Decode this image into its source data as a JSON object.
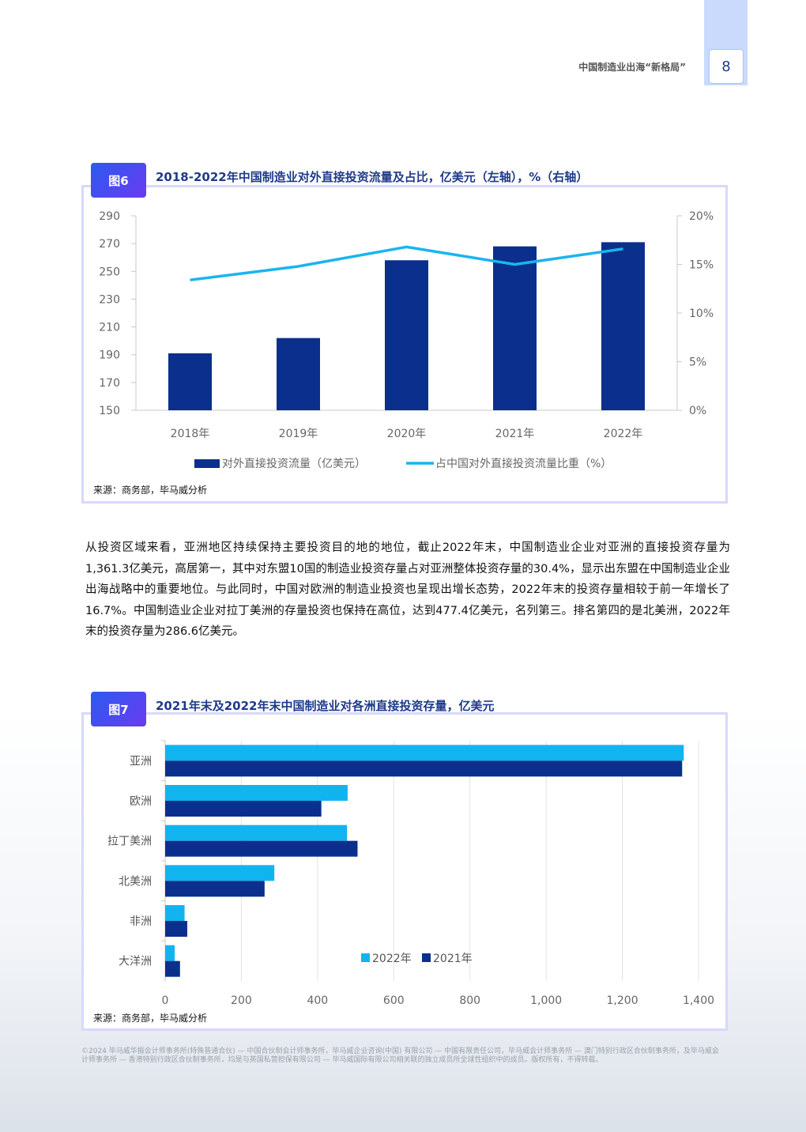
{
  "header": {
    "running_head": "中国制造业出海“新格局”",
    "page_number": "8"
  },
  "figure6": {
    "badge": "图6",
    "title": "2018-2022年中国制造业对外直接投资流量及占比，亿美元（左轴），%（右轴）",
    "source": "来源：商务部，毕马威分析",
    "chart_data": {
      "type": "bar",
      "categories": [
        "2018年",
        "2019年",
        "2020年",
        "2021年",
        "2022年"
      ],
      "series": [
        {
          "name": "对外直接投资流量（亿美元）",
          "type": "bar",
          "axis": "left",
          "values": [
            191,
            202,
            258,
            268,
            271
          ],
          "color": "#0a2f8c"
        },
        {
          "name": "占中国对外直接投资流量比重（%）",
          "type": "line",
          "axis": "right",
          "values": [
            13.4,
            14.8,
            16.8,
            15.0,
            16.6
          ],
          "color": "#19b5ee"
        }
      ],
      "y_left_ticks": [
        "290",
        "270",
        "250",
        "230",
        "210",
        "190",
        "170",
        "150"
      ],
      "y_right_ticks": [
        "20%",
        "15%",
        "10%",
        "5%",
        "0%"
      ],
      "ylim_left": [
        150,
        290
      ],
      "ylim_right": [
        0,
        20
      ],
      "legend_position": "bottom",
      "grid": false
    }
  },
  "paragraph": "从投资区域来看，亚洲地区持续保持主要投资目的地的地位，截止2022年末，中国制造业企业对亚洲的直接投资存量为1,361.3亿美元，高居第一，其中对东盟10国的制造业投资存量占对亚洲整体投资存量的30.4%，显示出东盟在中国制造业企业出海战略中的重要地位。与此同时，中国对欧洲的制造业投资也呈现出增长态势，2022年末的投资存量相较于前一年增长了16.7%。中国制造业企业对拉丁美洲的存量投资也保持在高位，达到477.4亿美元，名列第三。排名第四的是北美洲，2022年末的投资存量为286.6亿美元。",
  "figure7": {
    "badge": "图7",
    "title": "2021年末及2022年末中国制造业对各洲直接投资存量，亿美元",
    "source": "来源：商务部，毕马威分析",
    "chart_data": {
      "type": "bar",
      "orientation": "horizontal",
      "categories": [
        "亚洲",
        "欧洲",
        "拉丁美洲",
        "北美洲",
        "非洲",
        "大洋洲"
      ],
      "series": [
        {
          "name": "2022年",
          "values": [
            1361.3,
            479,
            477.4,
            286.6,
            51,
            25
          ],
          "color": "#12b4f0"
        },
        {
          "name": "2021年",
          "values": [
            1357,
            410,
            505,
            261,
            58,
            39
          ],
          "color": "#0a2f8c"
        }
      ],
      "x_ticks": [
        "0",
        "200",
        "400",
        "600",
        "800",
        "1,000",
        "1,200",
        "1,400"
      ],
      "xlim": [
        0,
        1400
      ],
      "legend_position": "bottom-right inside",
      "grid": true
    }
  },
  "footer": "©2024 毕马威华振会计师事务所(特殊普通合伙) — 中国合伙制会计师事务所，毕马威企业咨询(中国) 有限公司 — 中国有限责任公司，毕马威会计师事务所 — 澳门特别行政区合伙制事务所，及毕马威会计师事务所 — 香港特别行政区合伙制事务所，均是与英国私营担保有限公司 — 毕马威国际有限公司相关联的独立成员所全球性组织中的成员。版权所有，不得转载。"
}
